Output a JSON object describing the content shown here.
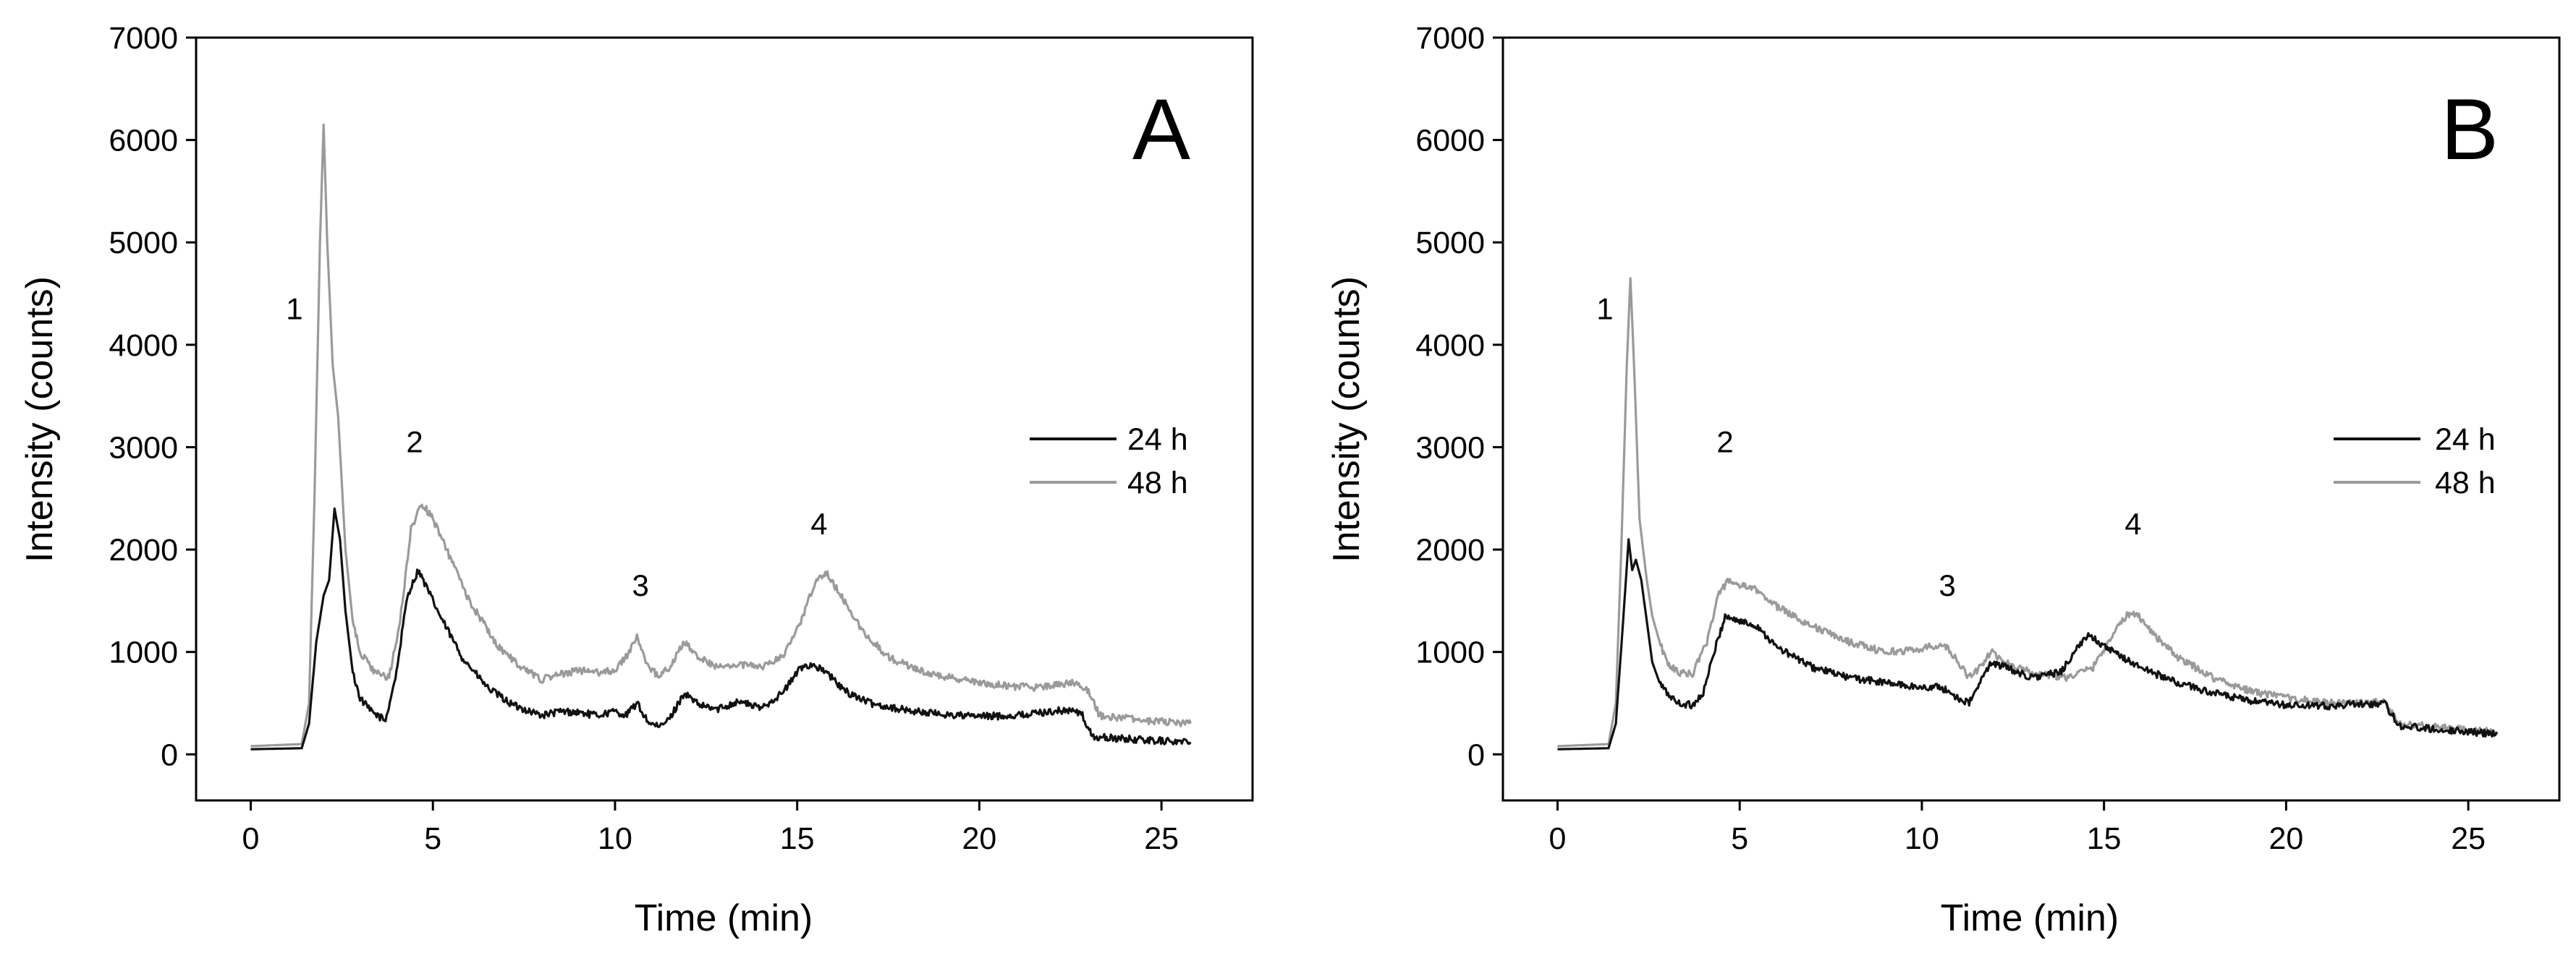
{
  "chart_data": [
    {
      "type": "line",
      "panel_label": "A",
      "xlabel": "Time (min)",
      "ylabel": "Intensity (counts)",
      "xlim": [
        -1.5,
        27.5
      ],
      "ylim": [
        -450,
        7000
      ],
      "xticks": [
        0,
        5,
        10,
        15,
        20,
        25
      ],
      "yticks": [
        0,
        1000,
        2000,
        3000,
        4000,
        5000,
        6000,
        7000
      ],
      "legend": {
        "position": "right",
        "entries": [
          "24 h",
          "48 h"
        ]
      },
      "series": [
        {
          "name": "24 h",
          "color": "#111111",
          "x": [
            0,
            1.4,
            1.6,
            1.8,
            2.0,
            2.15,
            2.3,
            2.45,
            2.6,
            2.8,
            3.0,
            3.3,
            3.7,
            4.0,
            4.3,
            4.6,
            4.8,
            5.2,
            5.8,
            6.5,
            7.2,
            8.0,
            8.5,
            9.0,
            9.5,
            10.0,
            10.3,
            10.6,
            10.9,
            11.2,
            11.5,
            11.9,
            12.3,
            12.8,
            13.4,
            14.0,
            14.6,
            15.1,
            15.4,
            15.8,
            16.3,
            17.0,
            18.0,
            19.0,
            20.0,
            21.0,
            22.0,
            22.5,
            22.8,
            23.1,
            24.0,
            25.8
          ],
          "y": [
            50,
            60,
            300,
            1100,
            1550,
            1700,
            2400,
            2100,
            1400,
            800,
            550,
            420,
            330,
            800,
            1550,
            1800,
            1650,
            1350,
            950,
            650,
            480,
            380,
            420,
            410,
            380,
            420,
            380,
            500,
            320,
            260,
            350,
            600,
            480,
            440,
            520,
            450,
            600,
            850,
            880,
            800,
            620,
            500,
            430,
            390,
            370,
            380,
            420,
            430,
            400,
            170,
            150,
            120
          ]
        },
        {
          "name": "48 h",
          "color": "#9a9a9a",
          "x": [
            0,
            1.4,
            1.6,
            1.75,
            1.9,
            2.0,
            2.1,
            2.25,
            2.4,
            2.6,
            2.8,
            3.0,
            3.4,
            3.8,
            4.1,
            4.4,
            4.7,
            5.0,
            5.5,
            6.0,
            6.8,
            7.5,
            8.0,
            8.5,
            9.0,
            9.5,
            10.0,
            10.3,
            10.6,
            10.9,
            11.2,
            11.5,
            11.9,
            12.3,
            12.8,
            13.4,
            14.0,
            14.6,
            15.1,
            15.5,
            15.8,
            16.2,
            16.8,
            17.5,
            18.5,
            19.5,
            20.5,
            21.5,
            22.3,
            22.7,
            23.0,
            23.3,
            24.5,
            25.8
          ],
          "y": [
            80,
            100,
            500,
            2500,
            5000,
            6150,
            5000,
            3800,
            3300,
            2000,
            1300,
            1000,
            800,
            750,
            1300,
            2200,
            2450,
            2300,
            1900,
            1500,
            1050,
            830,
            730,
            780,
            820,
            800,
            820,
            950,
            1150,
            850,
            770,
            850,
            1100,
            950,
            850,
            880,
            850,
            950,
            1300,
            1700,
            1780,
            1550,
            1200,
            950,
            800,
            730,
            680,
            650,
            690,
            700,
            620,
            380,
            330,
            300
          ]
        }
      ],
      "annotations": [
        {
          "text": "1",
          "x": 1.2,
          "y": 4250
        },
        {
          "text": "2",
          "x": 4.5,
          "y": 2950
        },
        {
          "text": "3",
          "x": 10.7,
          "y": 1550
        },
        {
          "text": "4",
          "x": 15.6,
          "y": 2150
        }
      ]
    },
    {
      "type": "line",
      "panel_label": "B",
      "xlabel": "Time (min)",
      "ylabel": "Intensity (counts)",
      "xlim": [
        -1.5,
        27.5
      ],
      "ylim": [
        -450,
        7000
      ],
      "xticks": [
        0,
        5,
        10,
        15,
        20,
        25
      ],
      "yticks": [
        0,
        1000,
        2000,
        3000,
        4000,
        5000,
        6000,
        7000
      ],
      "legend": {
        "position": "right",
        "entries": [
          "24 h",
          "48 h"
        ]
      },
      "series": [
        {
          "name": "24 h",
          "color": "#111111",
          "x": [
            0,
            1.4,
            1.6,
            1.8,
            1.95,
            2.05,
            2.15,
            2.3,
            2.45,
            2.6,
            2.8,
            3.0,
            3.3,
            3.7,
            4.0,
            4.3,
            4.6,
            5.0,
            5.5,
            6.0,
            7.0,
            8.0,
            9.0,
            10.0,
            10.5,
            11.0,
            11.3,
            11.6,
            11.9,
            12.3,
            13.0,
            13.8,
            14.2,
            14.6,
            15.0,
            15.5,
            16.0,
            17.0,
            18.0,
            19.0,
            20.0,
            21.0,
            22.0,
            22.7,
            23.1,
            24.0,
            25.8
          ],
          "y": [
            50,
            60,
            300,
            1300,
            2100,
            1800,
            1900,
            1700,
            1300,
            900,
            700,
            600,
            500,
            480,
            600,
            1000,
            1350,
            1300,
            1250,
            1050,
            850,
            750,
            700,
            650,
            660,
            550,
            500,
            700,
            900,
            850,
            750,
            800,
            1000,
            1180,
            1050,
            950,
            850,
            700,
            600,
            520,
            480,
            470,
            490,
            500,
            280,
            250,
            200
          ]
        },
        {
          "name": "48 h",
          "color": "#9a9a9a",
          "x": [
            0,
            1.4,
            1.6,
            1.75,
            1.9,
            2.0,
            2.1,
            2.25,
            2.45,
            2.6,
            2.8,
            3.0,
            3.3,
            3.7,
            4.1,
            4.4,
            4.7,
            5.0,
            5.5,
            6.0,
            7.0,
            8.0,
            9.0,
            9.8,
            10.2,
            10.6,
            11.0,
            11.3,
            11.6,
            11.9,
            12.3,
            13.0,
            14.0,
            14.7,
            15.2,
            15.6,
            15.9,
            16.3,
            17.0,
            18.0,
            19.0,
            20.0,
            21.0,
            22.0,
            22.7,
            23.1,
            24.0,
            25.8
          ],
          "y": [
            80,
            100,
            500,
            2000,
            3800,
            4650,
            3800,
            2300,
            1700,
            1350,
            1100,
            900,
            800,
            780,
            1100,
            1550,
            1700,
            1650,
            1600,
            1450,
            1250,
            1100,
            1000,
            1020,
            1050,
            1080,
            900,
            750,
            850,
            1000,
            900,
            800,
            750,
            850,
            1150,
            1350,
            1380,
            1200,
            950,
            750,
            620,
            550,
            510,
            500,
            510,
            300,
            270,
            220
          ]
        }
      ],
      "annotations": [
        {
          "text": "1",
          "x": 1.3,
          "y": 4250
        },
        {
          "text": "2",
          "x": 4.6,
          "y": 2950
        },
        {
          "text": "3",
          "x": 10.7,
          "y": 1550
        },
        {
          "text": "4",
          "x": 15.8,
          "y": 2150
        }
      ]
    }
  ]
}
